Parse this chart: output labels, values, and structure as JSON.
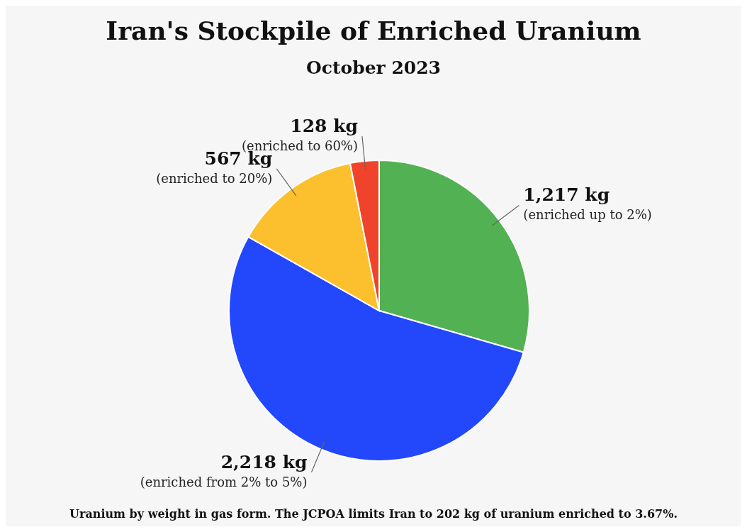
{
  "chart_data": {
    "type": "pie",
    "title": "Iran's Stockpile of Enriched Uranium",
    "subtitle": "October 2023",
    "categories": [
      "(enriched up to 2%)",
      "(enriched from 2% to 5%)",
      "(enriched to 20%)",
      "(enriched to 60%)"
    ],
    "values": [
      1217,
      2218,
      567,
      128
    ],
    "value_labels": [
      "1,217 kg",
      "2,218 kg",
      "567 kg",
      "128 kg"
    ],
    "colors": [
      "#52b152",
      "#2347fb",
      "#fcc02e",
      "#f0432c"
    ],
    "annotations": [
      "Uranium by weight in gas form. The JCPOA limits Iran to 202 kg of uranium enriched to 3.67%."
    ],
    "legend": false
  }
}
